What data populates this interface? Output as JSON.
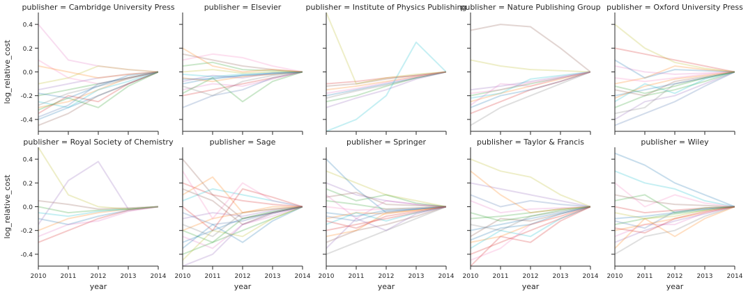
{
  "figure": {
    "x_label": "year",
    "y_label": "log_relative_cost",
    "x_ticks": [
      "2010",
      "2011",
      "2012",
      "2013",
      "2014"
    ],
    "y_ticks": [
      "0.4",
      "0.2",
      "0.0",
      "-0.2",
      "-0.4"
    ]
  },
  "chart_data": {
    "type": "line",
    "facet_var": "publisher",
    "x": [
      2010,
      2011,
      2012,
      2013,
      2014
    ],
    "xlim": [
      2010,
      2014
    ],
    "ylim": [
      -0.5,
      0.5
    ],
    "grid": false,
    "line_alpha": 0.25,
    "palette": [
      "#1f77b4",
      "#ff7f0e",
      "#2ca02c",
      "#d62728",
      "#9467bd",
      "#8c564b",
      "#e377c2",
      "#17becf",
      "#bcbd22",
      "#7f7f7f",
      "#f781bf",
      "#4c72b0"
    ],
    "facets": [
      {
        "title": "publisher = Cambridge University Press",
        "series": [
          [
            -0.4,
            -0.3,
            -0.2,
            -0.1,
            0.0
          ],
          [
            -0.3,
            -0.25,
            -0.15,
            -0.05,
            0.0
          ],
          [
            -0.2,
            -0.15,
            -0.1,
            -0.05,
            0.0
          ],
          [
            -0.35,
            -0.2,
            -0.25,
            -0.1,
            0.0
          ],
          [
            -0.15,
            -0.1,
            -0.05,
            -0.02,
            0.0
          ],
          [
            -0.45,
            -0.35,
            -0.2,
            -0.1,
            0.0
          ],
          [
            0.4,
            0.1,
            0.05,
            0.02,
            0.0
          ],
          [
            -0.25,
            -0.3,
            -0.15,
            -0.08,
            0.0
          ],
          [
            -0.1,
            -0.05,
            0.05,
            0.02,
            0.0
          ],
          [
            -0.28,
            -0.18,
            -0.12,
            -0.06,
            0.0
          ],
          [
            0.1,
            -0.05,
            -0.1,
            -0.05,
            0.0
          ],
          [
            -0.38,
            -0.28,
            -0.1,
            -0.05,
            0.0
          ],
          [
            -0.18,
            -0.22,
            -0.12,
            -0.03,
            0.0
          ],
          [
            0.05,
            0.0,
            -0.05,
            -0.02,
            0.0
          ],
          [
            -0.32,
            -0.22,
            -0.3,
            -0.12,
            0.0
          ]
        ]
      },
      {
        "title": "publisher = Elsevier",
        "series": [
          [
            -0.1,
            -0.05,
            -0.03,
            -0.02,
            0.0
          ],
          [
            -0.05,
            -0.08,
            -0.04,
            -0.02,
            0.0
          ],
          [
            0.05,
            0.08,
            0.02,
            0.01,
            0.0
          ],
          [
            -0.2,
            -0.15,
            -0.1,
            -0.05,
            0.0
          ],
          [
            -0.08,
            -0.03,
            -0.05,
            -0.01,
            0.0
          ],
          [
            0.15,
            0.1,
            0.05,
            0.02,
            0.0
          ],
          [
            -0.15,
            -0.1,
            -0.12,
            -0.06,
            0.0
          ],
          [
            -0.02,
            -0.04,
            -0.02,
            -0.01,
            0.0
          ],
          [
            0.0,
            0.02,
            -0.01,
            0.0,
            0.0
          ],
          [
            -0.12,
            -0.2,
            -0.08,
            -0.03,
            0.0
          ],
          [
            0.1,
            0.15,
            0.12,
            0.05,
            0.0
          ],
          [
            -0.3,
            -0.2,
            -0.15,
            -0.05,
            0.0
          ],
          [
            -0.06,
            -0.06,
            -0.03,
            -0.01,
            0.0
          ],
          [
            0.2,
            0.05,
            0.0,
            0.02,
            0.0
          ],
          [
            -0.18,
            -0.05,
            -0.25,
            -0.08,
            0.0
          ]
        ]
      },
      {
        "title": "publisher = Institute of Physics Publishing",
        "series": [
          [
            -0.2,
            -0.15,
            -0.1,
            -0.05,
            0.0
          ],
          [
            -0.15,
            -0.12,
            -0.08,
            -0.04,
            0.0
          ],
          [
            -0.25,
            -0.2,
            -0.12,
            -0.05,
            0.0
          ],
          [
            -0.1,
            -0.08,
            -0.05,
            -0.03,
            0.0
          ],
          [
            -0.3,
            -0.22,
            -0.15,
            -0.06,
            0.0
          ],
          [
            -0.12,
            -0.1,
            -0.06,
            -0.03,
            0.0
          ],
          [
            -0.18,
            -0.14,
            -0.09,
            -0.04,
            0.0
          ],
          [
            -0.5,
            -0.4,
            -0.2,
            0.25,
            0.0
          ],
          [
            0.5,
            -0.1,
            -0.05,
            -0.02,
            0.0
          ],
          [
            -0.22,
            -0.16,
            -0.11,
            -0.05,
            0.0
          ]
        ]
      },
      {
        "title": "publisher = Nature Publishing Group",
        "series": [
          [
            -0.3,
            -0.2,
            -0.15,
            -0.08,
            0.0
          ],
          [
            -0.25,
            -0.18,
            -0.12,
            -0.06,
            0.0
          ],
          [
            -0.2,
            -0.15,
            -0.1,
            -0.05,
            0.0
          ],
          [
            -0.35,
            -0.25,
            -0.15,
            -0.08,
            0.0
          ],
          [
            -0.15,
            -0.12,
            -0.08,
            -0.04,
            0.0
          ],
          [
            0.35,
            0.4,
            0.38,
            0.2,
            0.0
          ],
          [
            -0.28,
            -0.1,
            -0.12,
            -0.05,
            0.0
          ],
          [
            -0.22,
            -0.18,
            -0.06,
            -0.03,
            0.0
          ],
          [
            0.1,
            0.05,
            0.02,
            0.01,
            0.0
          ],
          [
            -0.45,
            -0.3,
            -0.2,
            -0.1,
            0.0
          ],
          [
            -0.18,
            -0.15,
            -0.09,
            -0.05,
            0.0
          ]
        ]
      },
      {
        "title": "publisher = Oxford University Press",
        "series": [
          [
            -0.2,
            -0.15,
            -0.1,
            -0.05,
            0.0
          ],
          [
            -0.1,
            -0.05,
            0.05,
            0.02,
            0.0
          ],
          [
            -0.3,
            -0.2,
            -0.15,
            -0.08,
            0.0
          ],
          [
            0.2,
            0.15,
            0.1,
            0.05,
            0.0
          ],
          [
            -0.4,
            -0.25,
            -0.2,
            -0.1,
            0.0
          ],
          [
            -0.15,
            -0.2,
            -0.08,
            -0.04,
            0.0
          ],
          [
            0.05,
            0.0,
            -0.02,
            -0.01,
            0.0
          ],
          [
            -0.25,
            -0.1,
            -0.18,
            -0.06,
            0.0
          ],
          [
            0.4,
            0.2,
            0.08,
            0.03,
            0.0
          ],
          [
            -0.35,
            -0.3,
            -0.1,
            -0.05,
            0.0
          ],
          [
            -0.05,
            -0.08,
            -0.05,
            -0.02,
            0.0
          ],
          [
            -0.45,
            -0.35,
            -0.25,
            -0.12,
            0.0
          ],
          [
            0.1,
            -0.05,
            0.02,
            0.01,
            0.0
          ],
          [
            -0.22,
            -0.12,
            -0.06,
            -0.03,
            0.0
          ],
          [
            -0.12,
            -0.18,
            -0.12,
            -0.05,
            0.0
          ]
        ]
      },
      {
        "title": "publisher = Royal Society of Chemistry",
        "series": [
          [
            -0.1,
            -0.15,
            -0.08,
            -0.03,
            0.0
          ],
          [
            -0.2,
            -0.1,
            -0.05,
            -0.02,
            0.0
          ],
          [
            0.0,
            -0.05,
            -0.03,
            -0.02,
            0.0
          ],
          [
            -0.3,
            -0.2,
            -0.1,
            -0.03,
            0.0
          ],
          [
            -0.15,
            0.22,
            0.38,
            -0.02,
            0.0
          ],
          [
            0.05,
            0.02,
            -0.02,
            -0.01,
            0.0
          ],
          [
            -0.25,
            -0.15,
            -0.12,
            -0.04,
            0.0
          ],
          [
            -0.05,
            -0.08,
            -0.04,
            -0.02,
            0.0
          ],
          [
            0.5,
            0.1,
            0.0,
            -0.02,
            0.0
          ]
        ]
      },
      {
        "title": "publisher = Sage",
        "series": [
          [
            -0.3,
            -0.2,
            -0.1,
            -0.05,
            0.0
          ],
          [
            -0.2,
            -0.1,
            -0.05,
            -0.02,
            0.0
          ],
          [
            -0.4,
            -0.3,
            -0.2,
            -0.1,
            0.0
          ],
          [
            0.2,
            0.1,
            0.05,
            0.02,
            0.0
          ],
          [
            -0.1,
            -0.05,
            -0.08,
            -0.03,
            0.0
          ],
          [
            0.4,
            0.1,
            -0.1,
            -0.05,
            0.0
          ],
          [
            -0.25,
            -0.35,
            -0.15,
            -0.08,
            0.0
          ],
          [
            0.05,
            0.15,
            0.1,
            0.05,
            0.0
          ],
          [
            -0.45,
            -0.2,
            -0.25,
            -0.1,
            0.0
          ],
          [
            -0.15,
            -0.25,
            -0.05,
            -0.02,
            0.0
          ],
          [
            0.3,
            -0.1,
            0.2,
            0.05,
            0.0
          ],
          [
            -0.05,
            -0.15,
            -0.12,
            -0.05,
            0.0
          ],
          [
            -0.35,
            -0.15,
            -0.3,
            -0.12,
            0.0
          ],
          [
            0.1,
            0.25,
            -0.05,
            0.0,
            0.0
          ],
          [
            -0.2,
            -0.3,
            -0.1,
            -0.04,
            0.0
          ],
          [
            0.0,
            -0.2,
            0.15,
            0.08,
            0.0
          ],
          [
            -0.5,
            -0.4,
            -0.15,
            -0.06,
            0.0
          ],
          [
            0.15,
            0.05,
            -0.15,
            -0.05,
            0.0
          ]
        ]
      },
      {
        "title": "publisher = Springer",
        "series": [
          [
            -0.05,
            -0.08,
            -0.03,
            -0.02,
            0.0
          ],
          [
            -0.1,
            -0.05,
            -0.06,
            -0.03,
            0.0
          ],
          [
            0.05,
            0.02,
            -0.02,
            -0.01,
            0.0
          ],
          [
            -0.2,
            -0.15,
            -0.1,
            -0.05,
            0.0
          ],
          [
            0.2,
            0.1,
            0.05,
            0.02,
            0.0
          ],
          [
            -0.3,
            -0.2,
            -0.15,
            -0.08,
            0.0
          ],
          [
            0.1,
            -0.1,
            0.05,
            0.02,
            0.0
          ],
          [
            -0.15,
            -0.05,
            -0.12,
            -0.05,
            0.0
          ],
          [
            0.3,
            0.2,
            0.1,
            0.05,
            0.0
          ],
          [
            -0.4,
            -0.3,
            -0.2,
            -0.1,
            0.0
          ],
          [
            0.0,
            -0.03,
            -0.02,
            -0.01,
            0.0
          ],
          [
            -0.08,
            -0.12,
            -0.04,
            -0.02,
            0.0
          ],
          [
            0.4,
            0.15,
            -0.05,
            -0.02,
            0.0
          ],
          [
            -0.25,
            -0.2,
            -0.05,
            -0.03,
            0.0
          ],
          [
            0.15,
            0.05,
            0.1,
            0.03,
            0.0
          ],
          [
            -0.12,
            -0.18,
            -0.08,
            -0.04,
            0.0
          ],
          [
            -0.35,
            -0.1,
            -0.2,
            -0.06,
            0.0
          ],
          [
            0.08,
            0.12,
            0.02,
            0.01,
            0.0
          ]
        ]
      },
      {
        "title": "publisher = Taylor & Francis",
        "series": [
          [
            -0.2,
            -0.15,
            -0.1,
            -0.05,
            0.0
          ],
          [
            -0.3,
            -0.25,
            -0.15,
            -0.08,
            0.0
          ],
          [
            -0.1,
            -0.08,
            -0.05,
            -0.02,
            0.0
          ],
          [
            -0.4,
            -0.3,
            -0.2,
            -0.1,
            0.0
          ],
          [
            0.2,
            0.15,
            0.1,
            0.05,
            0.0
          ],
          [
            -0.25,
            -0.1,
            -0.12,
            -0.06,
            0.0
          ],
          [
            0.05,
            -0.05,
            -0.02,
            -0.01,
            0.0
          ],
          [
            -0.35,
            -0.2,
            -0.25,
            -0.1,
            0.0
          ],
          [
            0.4,
            0.3,
            0.25,
            0.1,
            0.0
          ],
          [
            -0.15,
            -0.2,
            -0.08,
            -0.04,
            0.0
          ],
          [
            -0.45,
            -0.35,
            -0.15,
            -0.08,
            0.0
          ],
          [
            0.1,
            0.0,
            0.05,
            0.02,
            0.0
          ],
          [
            -0.28,
            -0.18,
            -0.15,
            -0.06,
            0.0
          ],
          [
            0.3,
            0.1,
            -0.05,
            -0.02,
            0.0
          ],
          [
            -0.05,
            -0.12,
            -0.08,
            -0.03,
            0.0
          ],
          [
            -0.5,
            -0.25,
            -0.3,
            -0.12,
            0.0
          ]
        ]
      },
      {
        "title": "publisher = Wiley",
        "series": [
          [
            -0.1,
            -0.08,
            -0.05,
            -0.02,
            0.0
          ],
          [
            -0.2,
            -0.15,
            -0.1,
            -0.05,
            0.0
          ],
          [
            -0.15,
            -0.1,
            -0.06,
            -0.03,
            0.0
          ],
          [
            0.0,
            -0.05,
            -0.03,
            -0.01,
            0.0
          ],
          [
            -0.3,
            -0.2,
            -0.12,
            -0.06,
            0.0
          ],
          [
            0.1,
            0.05,
            0.02,
            0.01,
            0.0
          ],
          [
            -0.25,
            -0.15,
            -0.15,
            -0.05,
            0.0
          ],
          [
            0.3,
            0.2,
            0.15,
            0.05,
            0.0
          ],
          [
            -0.05,
            -0.1,
            -0.08,
            -0.03,
            0.0
          ],
          [
            -0.4,
            -0.25,
            -0.2,
            -0.08,
            0.0
          ],
          [
            0.2,
            0.0,
            0.1,
            0.03,
            0.0
          ],
          [
            -0.12,
            -0.18,
            -0.04,
            -0.02,
            0.0
          ],
          [
            0.45,
            0.35,
            0.2,
            0.1,
            0.0
          ],
          [
            -0.35,
            -0.1,
            -0.25,
            -0.1,
            0.0
          ],
          [
            0.05,
            0.1,
            -0.05,
            -0.01,
            0.0
          ],
          [
            -0.18,
            -0.22,
            -0.1,
            -0.04,
            0.0
          ]
        ]
      }
    ]
  }
}
